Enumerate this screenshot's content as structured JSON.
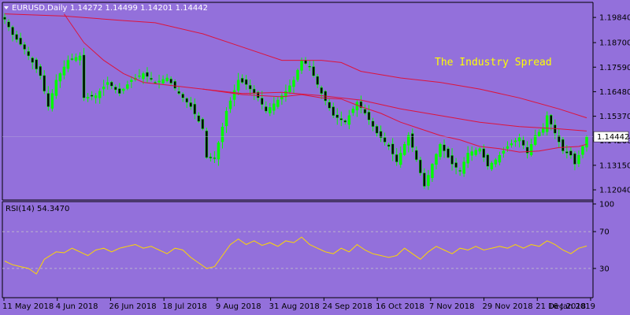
{
  "colors": {
    "background": "#9370db",
    "text": "#000000",
    "grid": "#000000",
    "bull_candle": "#00ff00",
    "bear_candle": "#000000",
    "ma": "#dc143c",
    "rsi": "#ffd700",
    "watermark": "#ffff00",
    "price_tag_bg": "#ffffff"
  },
  "header": {
    "symbol_label": "EURUSD,Daily",
    "ohlc_label": "1.14272 1.14499 1.14201 1.14442",
    "menu_icon": "triangle-down-icon"
  },
  "watermark_text": "The Industry Spread",
  "price_tag": "1.14442",
  "rsi_label": "RSI(14) 54.3470",
  "chart_data": [
    {
      "type": "candlestick",
      "title": "EURUSD,Daily",
      "ohlc_last": [
        1.14272,
        1.14499,
        1.14201,
        1.14442
      ],
      "ylim": [
        1.1165,
        1.2045
      ],
      "y_ticks": [
        1.1984,
        1.187,
        1.1759,
        1.1648,
        1.1537,
        1.1426,
        1.1315,
        1.1204
      ],
      "y_tick_labels": [
        "1.19840",
        "1.18700",
        "1.17590",
        "1.16480",
        "1.15370",
        "1.14260",
        "1.13150",
        "1.12040"
      ],
      "x_tick_labels": [
        "11 May 2018",
        "4 Jun 2018",
        "26 Jun 2018",
        "18 Jul 2018",
        "9 Aug 2018",
        "31 Aug 2018",
        "24 Sep 2018",
        "16 Oct 2018",
        "7 Nov 2018",
        "29 Nov 2018",
        "21 Dec 2018",
        "16 Jan 2019"
      ],
      "last_price": 1.14442,
      "grid": false,
      "close_anchors": [
        [
          0,
          1.1975
        ],
        [
          2,
          1.1905
        ],
        [
          5,
          1.184
        ],
        [
          9,
          1.172
        ],
        [
          11,
          1.158
        ],
        [
          13,
          1.17
        ],
        [
          16,
          1.179
        ],
        [
          19,
          1.181
        ],
        [
          20,
          1.162
        ],
        [
          23,
          1.163
        ],
        [
          26,
          1.169
        ],
        [
          29,
          1.164
        ],
        [
          32,
          1.17
        ],
        [
          35,
          1.173
        ],
        [
          38,
          1.169
        ],
        [
          41,
          1.171
        ],
        [
          44,
          1.164
        ],
        [
          47,
          1.158
        ],
        [
          50,
          1.148
        ],
        [
          51,
          1.135
        ],
        [
          53,
          1.1345
        ],
        [
          56,
          1.156
        ],
        [
          59,
          1.17
        ],
        [
          61,
          1.168
        ],
        [
          64,
          1.162
        ],
        [
          66,
          1.156
        ],
        [
          69,
          1.161
        ],
        [
          71,
          1.165
        ],
        [
          73,
          1.17
        ],
        [
          75,
          1.179
        ],
        [
          77,
          1.176
        ],
        [
          80,
          1.164
        ],
        [
          83,
          1.154
        ],
        [
          86,
          1.151
        ],
        [
          89,
          1.16
        ],
        [
          91,
          1.155
        ],
        [
          94,
          1.146
        ],
        [
          97,
          1.14
        ],
        [
          99,
          1.133
        ],
        [
          102,
          1.145
        ],
        [
          104,
          1.134
        ],
        [
          106,
          1.122
        ],
        [
          108,
          1.132
        ],
        [
          110,
          1.141
        ],
        [
          113,
          1.132
        ],
        [
          115,
          1.129
        ],
        [
          117,
          1.137
        ],
        [
          120,
          1.139
        ],
        [
          122,
          1.131
        ],
        [
          124,
          1.134
        ],
        [
          127,
          1.14
        ],
        [
          130,
          1.144
        ],
        [
          132,
          1.137
        ],
        [
          134,
          1.145
        ],
        [
          136,
          1.148
        ],
        [
          137,
          1.154
        ],
        [
          139,
          1.146
        ],
        [
          141,
          1.138
        ],
        [
          143,
          1.136
        ],
        [
          144,
          1.132
        ],
        [
          146,
          1.14
        ],
        [
          147,
          1.1444
        ]
      ],
      "ma_slow": [
        [
          0,
          1.2
        ],
        [
          15,
          1.199
        ],
        [
          30,
          1.197
        ],
        [
          38,
          1.196
        ],
        [
          50,
          1.191
        ],
        [
          60,
          1.185
        ],
        [
          70,
          1.179
        ],
        [
          80,
          1.179
        ],
        [
          85,
          1.178
        ],
        [
          90,
          1.174
        ],
        [
          100,
          1.171
        ],
        [
          110,
          1.169
        ],
        [
          120,
          1.166
        ],
        [
          130,
          1.162
        ],
        [
          140,
          1.157
        ],
        [
          147,
          1.153
        ]
      ],
      "ma_fast": [
        [
          15,
          1.2
        ],
        [
          20,
          1.187
        ],
        [
          25,
          1.179
        ],
        [
          30,
          1.173
        ],
        [
          35,
          1.169
        ],
        [
          40,
          1.168
        ],
        [
          50,
          1.166
        ],
        [
          60,
          1.1635
        ],
        [
          70,
          1.1625
        ],
        [
          75,
          1.1635
        ],
        [
          80,
          1.162
        ],
        [
          85,
          1.1615
        ],
        [
          90,
          1.158
        ],
        [
          95,
          1.155
        ],
        [
          100,
          1.151
        ],
        [
          105,
          1.148
        ],
        [
          110,
          1.145
        ],
        [
          115,
          1.143
        ],
        [
          120,
          1.14
        ],
        [
          125,
          1.139
        ],
        [
          130,
          1.1375
        ],
        [
          135,
          1.138
        ],
        [
          140,
          1.1395
        ],
        [
          145,
          1.14
        ],
        [
          147,
          1.141
        ]
      ],
      "ma_fast2": [
        [
          50,
          1.166
        ],
        [
          60,
          1.164
        ],
        [
          70,
          1.1645
        ],
        [
          80,
          1.163
        ],
        [
          90,
          1.161
        ],
        [
          100,
          1.157
        ],
        [
          110,
          1.154
        ],
        [
          120,
          1.151
        ],
        [
          130,
          1.149
        ],
        [
          140,
          1.148
        ],
        [
          147,
          1.147
        ]
      ]
    },
    {
      "type": "line",
      "title": "RSI(14) 54.3470",
      "series": [
        {
          "name": "RSI(14)",
          "last": 54.347
        }
      ],
      "ylim": [
        0,
        100
      ],
      "y_ticks": [
        100,
        70,
        30,
        0
      ],
      "levels": [
        70,
        30
      ],
      "values_anchors": [
        [
          0,
          38
        ],
        [
          2,
          34
        ],
        [
          4,
          32
        ],
        [
          6,
          30
        ],
        [
          8,
          24
        ],
        [
          10,
          40
        ],
        [
          13,
          48
        ],
        [
          15,
          47
        ],
        [
          17,
          52
        ],
        [
          19,
          48
        ],
        [
          21,
          44
        ],
        [
          23,
          50
        ],
        [
          25,
          52
        ],
        [
          27,
          48
        ],
        [
          29,
          52
        ],
        [
          31,
          54
        ],
        [
          33,
          56
        ],
        [
          35,
          52
        ],
        [
          37,
          54
        ],
        [
          39,
          50
        ],
        [
          41,
          46
        ],
        [
          43,
          52
        ],
        [
          45,
          50
        ],
        [
          47,
          42
        ],
        [
          49,
          36
        ],
        [
          51,
          30
        ],
        [
          53,
          32
        ],
        [
          55,
          44
        ],
        [
          57,
          56
        ],
        [
          59,
          62
        ],
        [
          61,
          56
        ],
        [
          63,
          60
        ],
        [
          65,
          55
        ],
        [
          67,
          58
        ],
        [
          69,
          54
        ],
        [
          71,
          60
        ],
        [
          73,
          58
        ],
        [
          75,
          64
        ],
        [
          77,
          56
        ],
        [
          79,
          52
        ],
        [
          81,
          48
        ],
        [
          83,
          46
        ],
        [
          85,
          52
        ],
        [
          87,
          48
        ],
        [
          89,
          56
        ],
        [
          91,
          50
        ],
        [
          93,
          46
        ],
        [
          95,
          44
        ],
        [
          97,
          42
        ],
        [
          99,
          44
        ],
        [
          101,
          52
        ],
        [
          103,
          46
        ],
        [
          105,
          40
        ],
        [
          107,
          48
        ],
        [
          109,
          54
        ],
        [
          111,
          50
        ],
        [
          113,
          46
        ],
        [
          115,
          52
        ],
        [
          117,
          50
        ],
        [
          119,
          54
        ],
        [
          121,
          50
        ],
        [
          123,
          52
        ],
        [
          125,
          54
        ],
        [
          127,
          52
        ],
        [
          129,
          56
        ],
        [
          131,
          52
        ],
        [
          133,
          56
        ],
        [
          135,
          54
        ],
        [
          137,
          60
        ],
        [
          139,
          56
        ],
        [
          141,
          50
        ],
        [
          143,
          46
        ],
        [
          145,
          52
        ],
        [
          147,
          54.347
        ]
      ]
    }
  ]
}
